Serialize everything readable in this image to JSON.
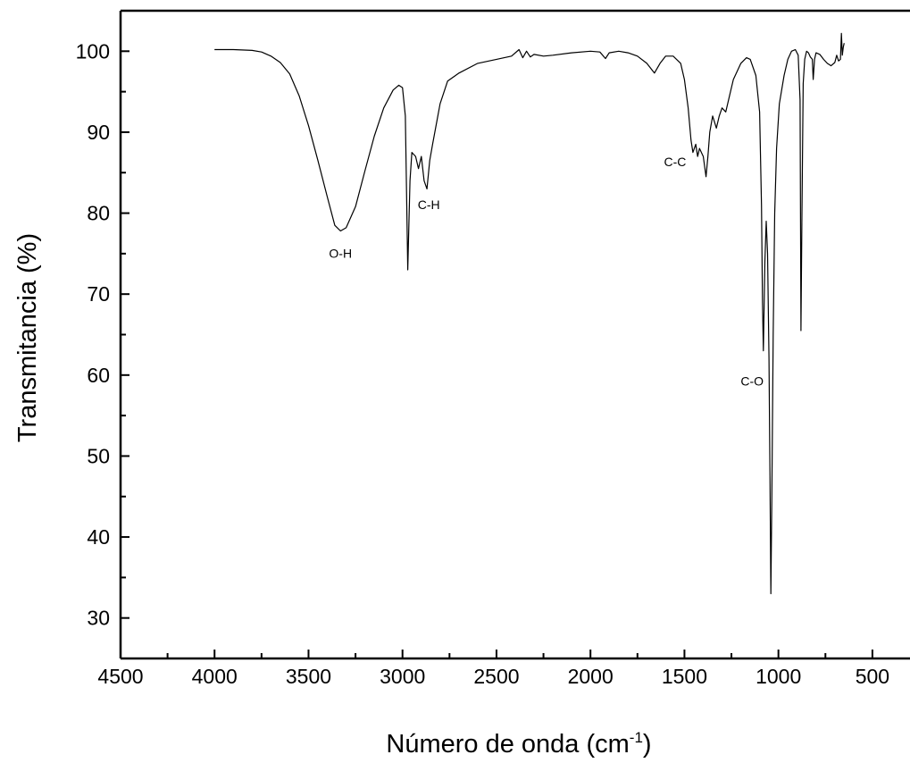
{
  "chart_data": {
    "type": "line",
    "xlabel": "Número de onda (cm",
    "xlabel_sup": "-1",
    "xlabel_close": ")",
    "ylabel": "Transmitancia (%)",
    "xlim": [
      4500,
      300
    ],
    "ylim": [
      25,
      105
    ],
    "x_reversed": true,
    "grid": false,
    "x_ticks": [
      "4500",
      "4000",
      "3500",
      "3000",
      "2500",
      "2000",
      "1500",
      "1000",
      "500"
    ],
    "y_ticks": [
      "30",
      "40",
      "50",
      "60",
      "70",
      "80",
      "90",
      "100"
    ],
    "annotations": [
      {
        "text": "O-H",
        "x": 3330,
        "y": 74.5
      },
      {
        "text": "C-H",
        "x": 2860,
        "y": 80.5
      },
      {
        "text": "C-C",
        "x": 1550,
        "y": 85.8
      },
      {
        "text": "C-O",
        "x": 1140,
        "y": 58.7
      }
    ],
    "series": [
      {
        "color": "#000000",
        "points": [
          [
            4000,
            100.2
          ],
          [
            3900,
            100.2
          ],
          [
            3800,
            100.1
          ],
          [
            3750,
            99.9
          ],
          [
            3700,
            99.4
          ],
          [
            3650,
            98.6
          ],
          [
            3600,
            97.2
          ],
          [
            3550,
            94.5
          ],
          [
            3500,
            90.8
          ],
          [
            3450,
            86.5
          ],
          [
            3400,
            82.0
          ],
          [
            3360,
            78.5
          ],
          [
            3330,
            77.8
          ],
          [
            3300,
            78.2
          ],
          [
            3250,
            80.8
          ],
          [
            3200,
            85.2
          ],
          [
            3150,
            89.5
          ],
          [
            3100,
            93.0
          ],
          [
            3050,
            95.2
          ],
          [
            3020,
            95.8
          ],
          [
            3000,
            95.5
          ],
          [
            2985,
            92.0
          ],
          [
            2972,
            73.0
          ],
          [
            2960,
            84.0
          ],
          [
            2950,
            87.5
          ],
          [
            2930,
            87.0
          ],
          [
            2915,
            85.5
          ],
          [
            2900,
            87.0
          ],
          [
            2885,
            84.0
          ],
          [
            2870,
            83.0
          ],
          [
            2855,
            86.5
          ],
          [
            2840,
            88.5
          ],
          [
            2800,
            93.5
          ],
          [
            2760,
            96.3
          ],
          [
            2700,
            97.3
          ],
          [
            2600,
            98.5
          ],
          [
            2500,
            99.0
          ],
          [
            2420,
            99.4
          ],
          [
            2380,
            100.2
          ],
          [
            2360,
            99.2
          ],
          [
            2340,
            100.0
          ],
          [
            2320,
            99.3
          ],
          [
            2300,
            99.6
          ],
          [
            2250,
            99.4
          ],
          [
            2200,
            99.5
          ],
          [
            2100,
            99.8
          ],
          [
            2000,
            100.0
          ],
          [
            1950,
            99.9
          ],
          [
            1920,
            99.1
          ],
          [
            1900,
            99.8
          ],
          [
            1850,
            100.0
          ],
          [
            1800,
            99.8
          ],
          [
            1750,
            99.4
          ],
          [
            1700,
            98.5
          ],
          [
            1660,
            97.3
          ],
          [
            1630,
            98.5
          ],
          [
            1600,
            99.4
          ],
          [
            1560,
            99.4
          ],
          [
            1520,
            98.5
          ],
          [
            1500,
            96.5
          ],
          [
            1480,
            93.0
          ],
          [
            1465,
            89.0
          ],
          [
            1455,
            87.5
          ],
          [
            1440,
            88.5
          ],
          [
            1430,
            87.0
          ],
          [
            1420,
            88.0
          ],
          [
            1400,
            87.0
          ],
          [
            1385,
            84.5
          ],
          [
            1375,
            87.0
          ],
          [
            1365,
            90.0
          ],
          [
            1350,
            92.0
          ],
          [
            1330,
            90.5
          ],
          [
            1315,
            92.0
          ],
          [
            1300,
            93.0
          ],
          [
            1280,
            92.5
          ],
          [
            1260,
            94.5
          ],
          [
            1240,
            96.5
          ],
          [
            1200,
            98.5
          ],
          [
            1170,
            99.2
          ],
          [
            1150,
            99.0
          ],
          [
            1120,
            97.0
          ],
          [
            1100,
            92.5
          ],
          [
            1090,
            81.0
          ],
          [
            1085,
            69.0
          ],
          [
            1080,
            63.0
          ],
          [
            1072,
            74.0
          ],
          [
            1065,
            79.0
          ],
          [
            1058,
            75.0
          ],
          [
            1050,
            62.0
          ],
          [
            1045,
            47.5
          ],
          [
            1040,
            33.0
          ],
          [
            1035,
            45.0
          ],
          [
            1028,
            65.0
          ],
          [
            1020,
            80.0
          ],
          [
            1010,
            88.0
          ],
          [
            995,
            93.5
          ],
          [
            970,
            97.0
          ],
          [
            950,
            99.0
          ],
          [
            930,
            100.0
          ],
          [
            910,
            100.2
          ],
          [
            895,
            99.5
          ],
          [
            885,
            94.0
          ],
          [
            880,
            65.5
          ],
          [
            875,
            80.0
          ],
          [
            868,
            96.0
          ],
          [
            860,
            99.0
          ],
          [
            850,
            100.0
          ],
          [
            840,
            99.8
          ],
          [
            830,
            99.3
          ],
          [
            820,
            99.0
          ],
          [
            815,
            96.5
          ],
          [
            808,
            99.0
          ],
          [
            800,
            99.8
          ],
          [
            780,
            99.6
          ],
          [
            760,
            99.0
          ],
          [
            740,
            98.5
          ],
          [
            720,
            98.2
          ],
          [
            700,
            98.6
          ],
          [
            690,
            99.5
          ],
          [
            680,
            98.8
          ],
          [
            670,
            99.0
          ],
          [
            665,
            102.2
          ],
          [
            660,
            99.5
          ],
          [
            655,
            100.5
          ],
          [
            650,
            101.0
          ]
        ]
      }
    ]
  }
}
